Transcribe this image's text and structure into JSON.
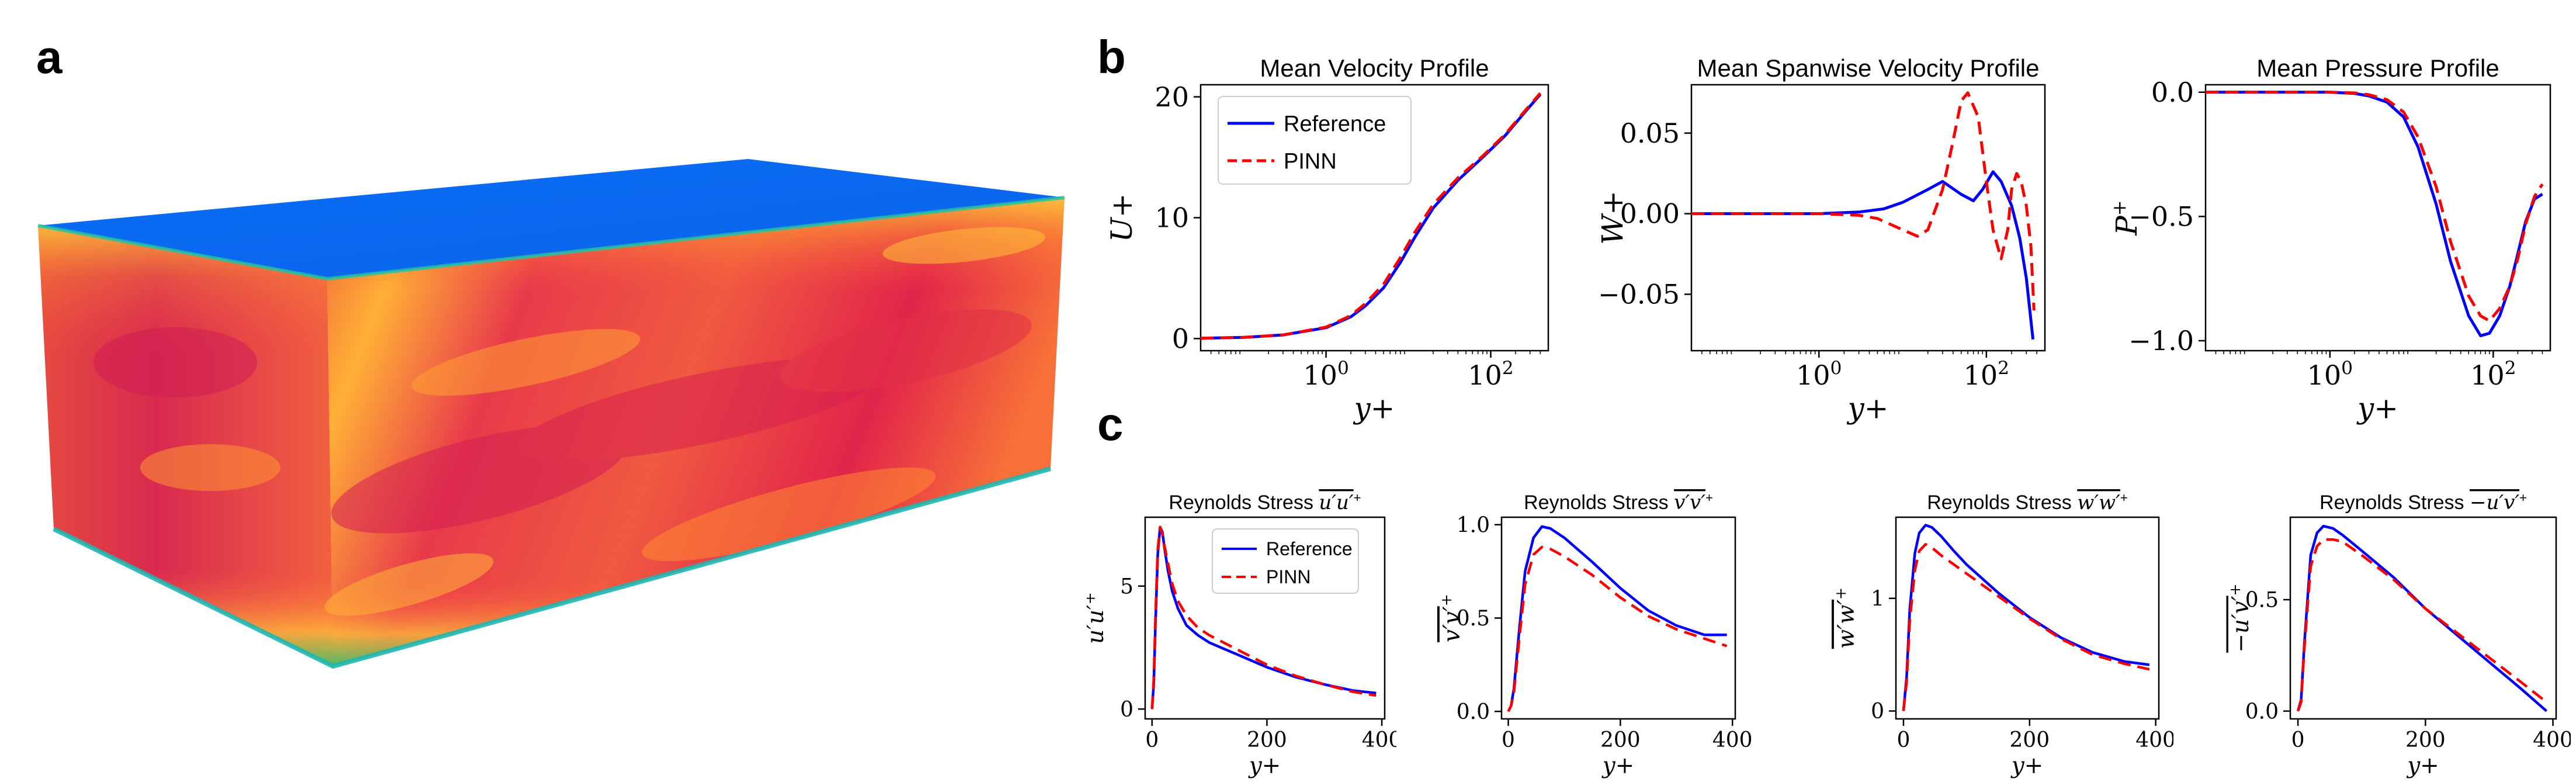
{
  "panels": {
    "a": "a",
    "b": "b",
    "c": "c"
  },
  "colors": {
    "reference": "#0000ff",
    "pinn": "#ff0000",
    "box_top": "#0a6cf5",
    "box_hot": "#e2244a",
    "box_mid": "#ff7a2e",
    "box_warm": "#ffd23a",
    "box_edge": "#35c26a"
  },
  "charts": {
    "b1": {
      "type": "line",
      "title": "Mean Velocity Profile",
      "xlabel": "y+",
      "ylabel": "U+",
      "xscale": "log",
      "xlim": [
        0.03,
        500
      ],
      "ylim": [
        -1,
        21
      ],
      "xticks": [
        {
          "v": 1,
          "label": "10",
          "exp": "0"
        },
        {
          "v": 100,
          "label": "10",
          "exp": "2"
        }
      ],
      "yticks": [
        {
          "v": 0,
          "label": "0"
        },
        {
          "v": 10,
          "label": "10"
        },
        {
          "v": 20,
          "label": "20"
        }
      ],
      "legend": {
        "reference": "Reference",
        "pinn": "PINN"
      },
      "series": [
        {
          "name": "Reference",
          "x": [
            0.03,
            0.1,
            0.3,
            1,
            2,
            3,
            5,
            8,
            12,
            20,
            40,
            80,
            150,
            250,
            400
          ],
          "y": [
            0.03,
            0.1,
            0.3,
            0.9,
            1.8,
            2.7,
            4.2,
            6.3,
            8.4,
            10.8,
            13.1,
            15,
            16.8,
            18.6,
            20.2
          ]
        },
        {
          "name": "PINN",
          "x": [
            0.03,
            0.1,
            0.3,
            1,
            2,
            3,
            5,
            8,
            12,
            20,
            40,
            80,
            150,
            250,
            400
          ],
          "y": [
            0.03,
            0.1,
            0.3,
            0.95,
            1.9,
            2.9,
            4.5,
            6.7,
            8.8,
            11.1,
            13.3,
            15.1,
            16.9,
            18.7,
            20.3
          ]
        }
      ]
    },
    "b2": {
      "type": "line",
      "title": "Mean Spanwise Velocity Profile",
      "xlabel": "y+",
      "ylabel": "W+",
      "xscale": "log",
      "xlim": [
        0.03,
        500
      ],
      "ylim": [
        -0.085,
        0.08
      ],
      "xticks": [
        {
          "v": 1,
          "label": "10",
          "exp": "0"
        },
        {
          "v": 100,
          "label": "10",
          "exp": "2"
        }
      ],
      "yticks": [
        {
          "v": -0.05,
          "label": "−0.05"
        },
        {
          "v": 0,
          "label": "0.00"
        },
        {
          "v": 0.05,
          "label": "0.05"
        }
      ],
      "series": [
        {
          "name": "Reference",
          "x": [
            0.03,
            1,
            3,
            6,
            10,
            20,
            30,
            50,
            70,
            90,
            120,
            150,
            200,
            250,
            300,
            360
          ],
          "y": [
            0,
            0,
            0.001,
            0.003,
            0.007,
            0.015,
            0.02,
            0.012,
            0.008,
            0.015,
            0.026,
            0.02,
            0.005,
            -0.015,
            -0.04,
            -0.078
          ]
        },
        {
          "name": "PINN",
          "x": [
            0.03,
            1,
            3,
            5,
            10,
            15,
            20,
            30,
            40,
            50,
            60,
            80,
            100,
            120,
            150,
            180,
            200,
            230,
            260,
            300,
            340,
            370
          ],
          "y": [
            0,
            0,
            -0.001,
            -0.003,
            -0.01,
            -0.014,
            -0.01,
            0.015,
            0.045,
            0.07,
            0.075,
            0.06,
            0.02,
            -0.01,
            -0.028,
            -0.01,
            0.015,
            0.025,
            0.02,
            0.005,
            -0.02,
            -0.06
          ]
        }
      ]
    },
    "b3": {
      "type": "line",
      "title": "Mean Pressure Profile",
      "xlabel": "y+",
      "ylabel": "P+",
      "xscale": "log",
      "xlim": [
        0.03,
        500
      ],
      "ylim": [
        -1.04,
        0.03
      ],
      "xticks": [
        {
          "v": 1,
          "label": "10",
          "exp": "0"
        },
        {
          "v": 100,
          "label": "10",
          "exp": "2"
        }
      ],
      "yticks": [
        {
          "v": -1,
          "label": "−1.0"
        },
        {
          "v": -0.5,
          "label": "−0.5"
        },
        {
          "v": 0,
          "label": "0.0"
        }
      ],
      "series": [
        {
          "name": "Reference",
          "x": [
            0.03,
            1,
            2,
            3,
            5,
            8,
            12,
            20,
            30,
            50,
            70,
            90,
            120,
            160,
            200,
            250,
            320,
            400
          ],
          "y": [
            0,
            0,
            -0.005,
            -0.015,
            -0.04,
            -0.1,
            -0.22,
            -0.45,
            -0.68,
            -0.9,
            -0.98,
            -0.97,
            -0.9,
            -0.78,
            -0.65,
            -0.52,
            -0.43,
            -0.41
          ]
        },
        {
          "name": "PINN",
          "x": [
            0.03,
            1,
            2,
            3,
            5,
            8,
            12,
            20,
            30,
            50,
            70,
            90,
            120,
            160,
            200,
            250,
            320,
            400
          ],
          "y": [
            0,
            0,
            -0.003,
            -0.01,
            -0.03,
            -0.08,
            -0.18,
            -0.38,
            -0.6,
            -0.82,
            -0.9,
            -0.92,
            -0.87,
            -0.78,
            -0.67,
            -0.53,
            -0.42,
            -0.37
          ]
        }
      ]
    },
    "c1": {
      "type": "line",
      "title": "Reynolds Stress ",
      "title_math": "u′u′",
      "ylabel": "u′u′",
      "xlabel": "y+",
      "xlim": [
        -12,
        405
      ],
      "ylim": [
        -0.4,
        7.8
      ],
      "xticks": [
        {
          "v": 0,
          "label": "0"
        },
        {
          "v": 200,
          "label": "200"
        },
        {
          "v": 400,
          "label": "400"
        }
      ],
      "yticks": [
        {
          "v": 0,
          "label": "0"
        },
        {
          "v": 5,
          "label": "5"
        }
      ],
      "legend": {
        "reference": "Reference",
        "pinn": "PINN"
      },
      "series": [
        {
          "name": "Reference",
          "x": [
            0,
            3,
            6,
            10,
            14,
            18,
            22,
            28,
            35,
            45,
            60,
            80,
            100,
            150,
            200,
            250,
            300,
            350,
            390
          ],
          "y": [
            0,
            1,
            3.5,
            6.3,
            7.4,
            7.2,
            6.5,
            5.6,
            4.8,
            4.1,
            3.4,
            3,
            2.7,
            2.2,
            1.7,
            1.3,
            1,
            0.75,
            0.65
          ]
        },
        {
          "name": "PINN",
          "x": [
            0,
            3,
            6,
            10,
            14,
            18,
            22,
            28,
            35,
            45,
            60,
            80,
            100,
            150,
            200,
            250,
            300,
            350,
            390
          ],
          "y": [
            0,
            1.2,
            3.8,
            6.5,
            7.4,
            7.1,
            6.6,
            5.9,
            5.1,
            4.4,
            3.8,
            3.3,
            3,
            2.4,
            1.8,
            1.35,
            1,
            0.7,
            0.55
          ]
        }
      ]
    },
    "c2": {
      "type": "line",
      "title": "Reynolds Stress ",
      "title_math": "v′v′",
      "ylabel": "v′v′",
      "xlabel": "y+",
      "xlim": [
        -12,
        405
      ],
      "ylim": [
        -0.04,
        1.04
      ],
      "xticks": [
        {
          "v": 0,
          "label": "0"
        },
        {
          "v": 200,
          "label": "200"
        },
        {
          "v": 400,
          "label": "400"
        }
      ],
      "yticks": [
        {
          "v": 0,
          "label": "0.0"
        },
        {
          "v": 0.5,
          "label": "0.5"
        },
        {
          "v": 1,
          "label": "1.0"
        }
      ],
      "series": [
        {
          "name": "Reference",
          "x": [
            0,
            5,
            10,
            20,
            30,
            45,
            60,
            75,
            100,
            150,
            200,
            250,
            300,
            350,
            390
          ],
          "y": [
            0,
            0.03,
            0.12,
            0.45,
            0.75,
            0.93,
            0.99,
            0.98,
            0.93,
            0.8,
            0.66,
            0.54,
            0.46,
            0.41,
            0.41
          ]
        },
        {
          "name": "PINN",
          "x": [
            0,
            5,
            10,
            20,
            30,
            45,
            60,
            75,
            100,
            150,
            200,
            250,
            300,
            350,
            390
          ],
          "y": [
            0,
            0.03,
            0.1,
            0.4,
            0.68,
            0.84,
            0.88,
            0.87,
            0.83,
            0.73,
            0.61,
            0.51,
            0.44,
            0.39,
            0.35
          ]
        }
      ]
    },
    "c3": {
      "type": "line",
      "title": "Reynolds Stress ",
      "title_math": "w′w′",
      "ylabel": "w′w′",
      "xlabel": "y+",
      "xlim": [
        -12,
        405
      ],
      "ylim": [
        -0.07,
        1.72
      ],
      "xticks": [
        {
          "v": 0,
          "label": "0"
        },
        {
          "v": 200,
          "label": "200"
        },
        {
          "v": 400,
          "label": "400"
        }
      ],
      "yticks": [
        {
          "v": 0,
          "label": "0"
        },
        {
          "v": 1,
          "label": "1"
        }
      ],
      "series": [
        {
          "name": "Reference",
          "x": [
            0,
            5,
            10,
            18,
            25,
            35,
            45,
            60,
            80,
            100,
            150,
            200,
            250,
            300,
            350,
            390
          ],
          "y": [
            0,
            0.3,
            0.9,
            1.4,
            1.58,
            1.65,
            1.63,
            1.55,
            1.42,
            1.3,
            1.05,
            0.83,
            0.65,
            0.52,
            0.44,
            0.41
          ]
        },
        {
          "name": "PINN",
          "x": [
            0,
            5,
            10,
            18,
            25,
            35,
            45,
            60,
            80,
            100,
            150,
            200,
            250,
            300,
            350,
            390
          ],
          "y": [
            0,
            0.25,
            0.8,
            1.25,
            1.42,
            1.48,
            1.45,
            1.38,
            1.3,
            1.22,
            1.02,
            0.82,
            0.64,
            0.5,
            0.42,
            0.37
          ]
        }
      ]
    },
    "c4": {
      "type": "line",
      "title": "Reynolds Stress ",
      "title_math": "−u′v′",
      "ylabel": "−u′v′",
      "xlabel": "y+",
      "xlim": [
        -12,
        405
      ],
      "ylim": [
        -0.035,
        0.87
      ],
      "xticks": [
        {
          "v": 0,
          "label": "0"
        },
        {
          "v": 200,
          "label": "200"
        },
        {
          "v": 400,
          "label": "400"
        }
      ],
      "yticks": [
        {
          "v": 0,
          "label": "0.0"
        },
        {
          "v": 0.5,
          "label": "0.5"
        }
      ],
      "series": [
        {
          "name": "Reference",
          "x": [
            0,
            5,
            10,
            20,
            30,
            40,
            55,
            70,
            100,
            150,
            200,
            250,
            300,
            350,
            390
          ],
          "y": [
            0,
            0.05,
            0.3,
            0.7,
            0.8,
            0.83,
            0.82,
            0.79,
            0.72,
            0.6,
            0.46,
            0.34,
            0.22,
            0.1,
            0.0
          ]
        },
        {
          "name": "PINN",
          "x": [
            0,
            5,
            10,
            20,
            30,
            40,
            55,
            70,
            100,
            150,
            200,
            250,
            300,
            350,
            390
          ],
          "y": [
            0,
            0.04,
            0.28,
            0.65,
            0.74,
            0.77,
            0.77,
            0.76,
            0.7,
            0.59,
            0.46,
            0.35,
            0.24,
            0.13,
            0.04
          ]
        }
      ]
    }
  },
  "chart_data": [
    {
      "type": "line",
      "title": "Mean Velocity Profile",
      "xlabel": "y+",
      "ylabel": "U+"
    },
    {
      "type": "line",
      "title": "Mean Spanwise Velocity Profile",
      "xlabel": "y+",
      "ylabel": "W+"
    },
    {
      "type": "line",
      "title": "Mean Pressure Profile",
      "xlabel": "y+",
      "ylabel": "P+"
    },
    {
      "type": "line",
      "title": "Reynolds Stress u′u′+",
      "xlabel": "y+"
    },
    {
      "type": "line",
      "title": "Reynolds Stress v′v′+",
      "xlabel": "y+"
    },
    {
      "type": "line",
      "title": "Reynolds Stress w′w′+",
      "xlabel": "y+"
    },
    {
      "type": "line",
      "title": "Reynolds Stress −u′v′+",
      "xlabel": "y+"
    }
  ]
}
